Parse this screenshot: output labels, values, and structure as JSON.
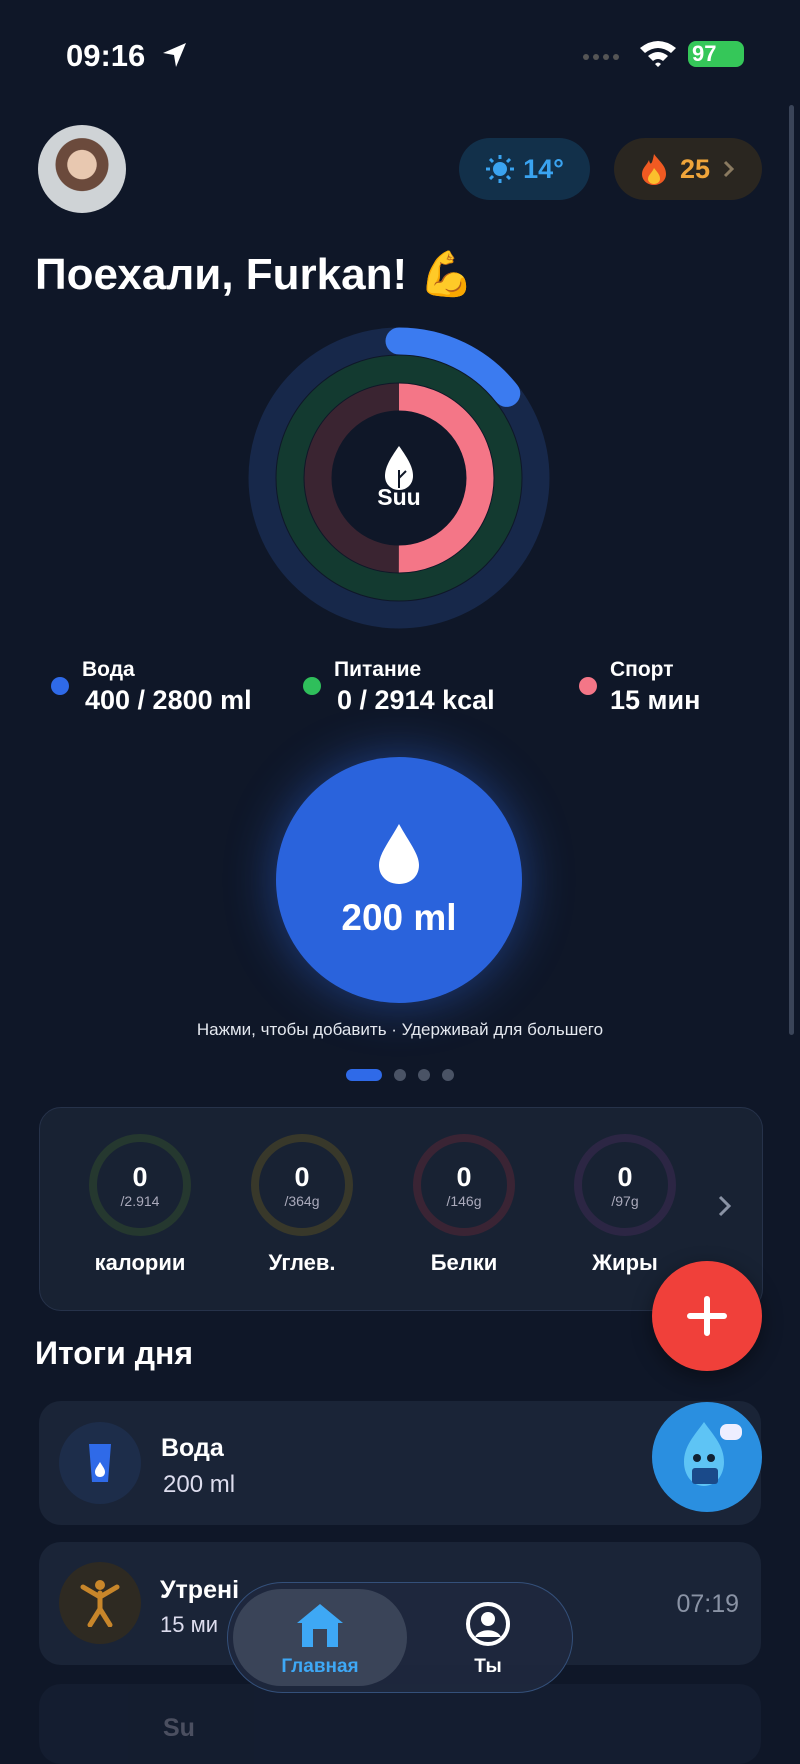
{
  "status_bar": {
    "time": "09:16",
    "battery": "97"
  },
  "header": {
    "weather": "14°",
    "streak": "25"
  },
  "greeting": "Поехали, Furkan! 💪",
  "rings": {
    "center_label": "Suu"
  },
  "legend": [
    {
      "label": "Вода",
      "value": "400 / 2800 ml"
    },
    {
      "label": "Питание",
      "value": "0 / 2914 kcal"
    },
    {
      "label": "Спорт",
      "value": "15 мин"
    }
  ],
  "water_button": {
    "amount": "200 ml",
    "hint": "Нажми, чтобы добавить · Удерживай для большего"
  },
  "nutrients": [
    {
      "value": "0",
      "goal": "/2.914",
      "label": "калории"
    },
    {
      "value": "0",
      "goal": "/364g",
      "label": "Углев."
    },
    {
      "value": "0",
      "goal": "/146g",
      "label": "Белки"
    },
    {
      "value": "0",
      "goal": "/97g",
      "label": "Жиры"
    }
  ],
  "summary": {
    "title": "Итоги дня",
    "items": [
      {
        "title": "Вода",
        "subtitle": "200 ml"
      },
      {
        "title": "Утрені",
        "subtitle": "15 ми",
        "time": "07:19"
      },
      {
        "title": "Su"
      }
    ]
  },
  "nav": {
    "items": [
      "Главная",
      "Ты"
    ]
  }
}
